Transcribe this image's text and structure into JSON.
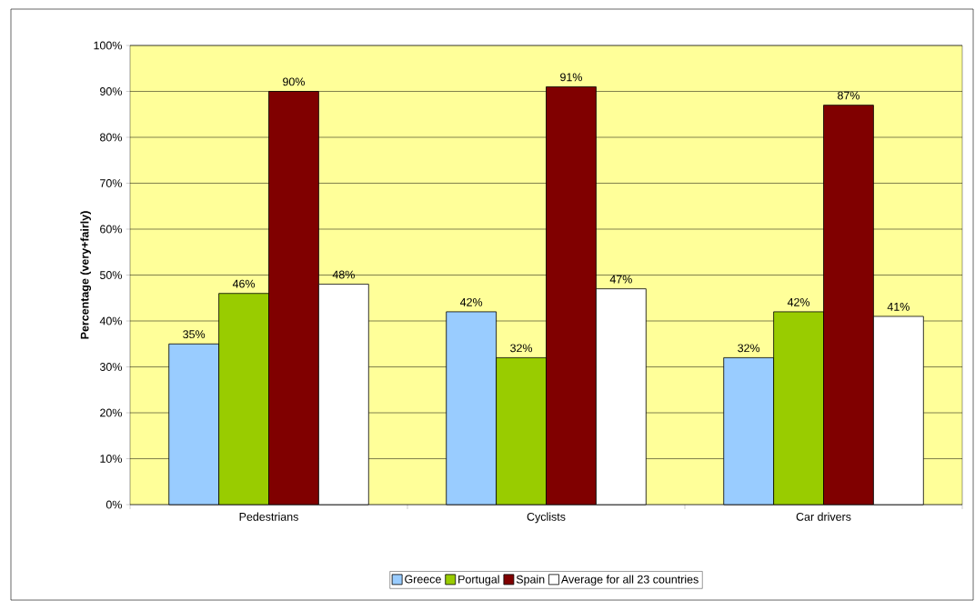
{
  "chart_data": {
    "type": "bar",
    "ylabel": "Percentage (very+fairly)",
    "categories": [
      "Pedestrians",
      "Cyclists",
      "Car drivers"
    ],
    "series": [
      {
        "name": "Greece",
        "color": "#99ccff",
        "values": [
          35,
          42,
          32
        ],
        "value_labels": [
          "35%",
          "42%",
          "32%"
        ]
      },
      {
        "name": "Portugal",
        "color": "#99cc00",
        "values": [
          46,
          32,
          42
        ],
        "value_labels": [
          "46%",
          "32%",
          "42%"
        ]
      },
      {
        "name": "Spain",
        "color": "#800000",
        "values": [
          90,
          91,
          87
        ],
        "value_labels": [
          "90%",
          "91%",
          "87%"
        ]
      },
      {
        "name": "Average for all 23 countries",
        "color": "#ffffff",
        "values": [
          48,
          47,
          41
        ],
        "value_labels": [
          "48%",
          "47%",
          "41%"
        ]
      }
    ],
    "ylim": [
      0,
      100
    ],
    "yticks": [
      {
        "value": 0,
        "label": "0%"
      },
      {
        "value": 10,
        "label": "10%"
      },
      {
        "value": 20,
        "label": "20%"
      },
      {
        "value": 30,
        "label": "30%"
      },
      {
        "value": 40,
        "label": "40%"
      },
      {
        "value": 50,
        "label": "50%"
      },
      {
        "value": 60,
        "label": "60%"
      },
      {
        "value": 70,
        "label": "70%"
      },
      {
        "value": 80,
        "label": "80%"
      },
      {
        "value": 90,
        "label": "90%"
      },
      {
        "value": 100,
        "label": "100%"
      }
    ],
    "grid": "y",
    "legend": "bottom"
  }
}
